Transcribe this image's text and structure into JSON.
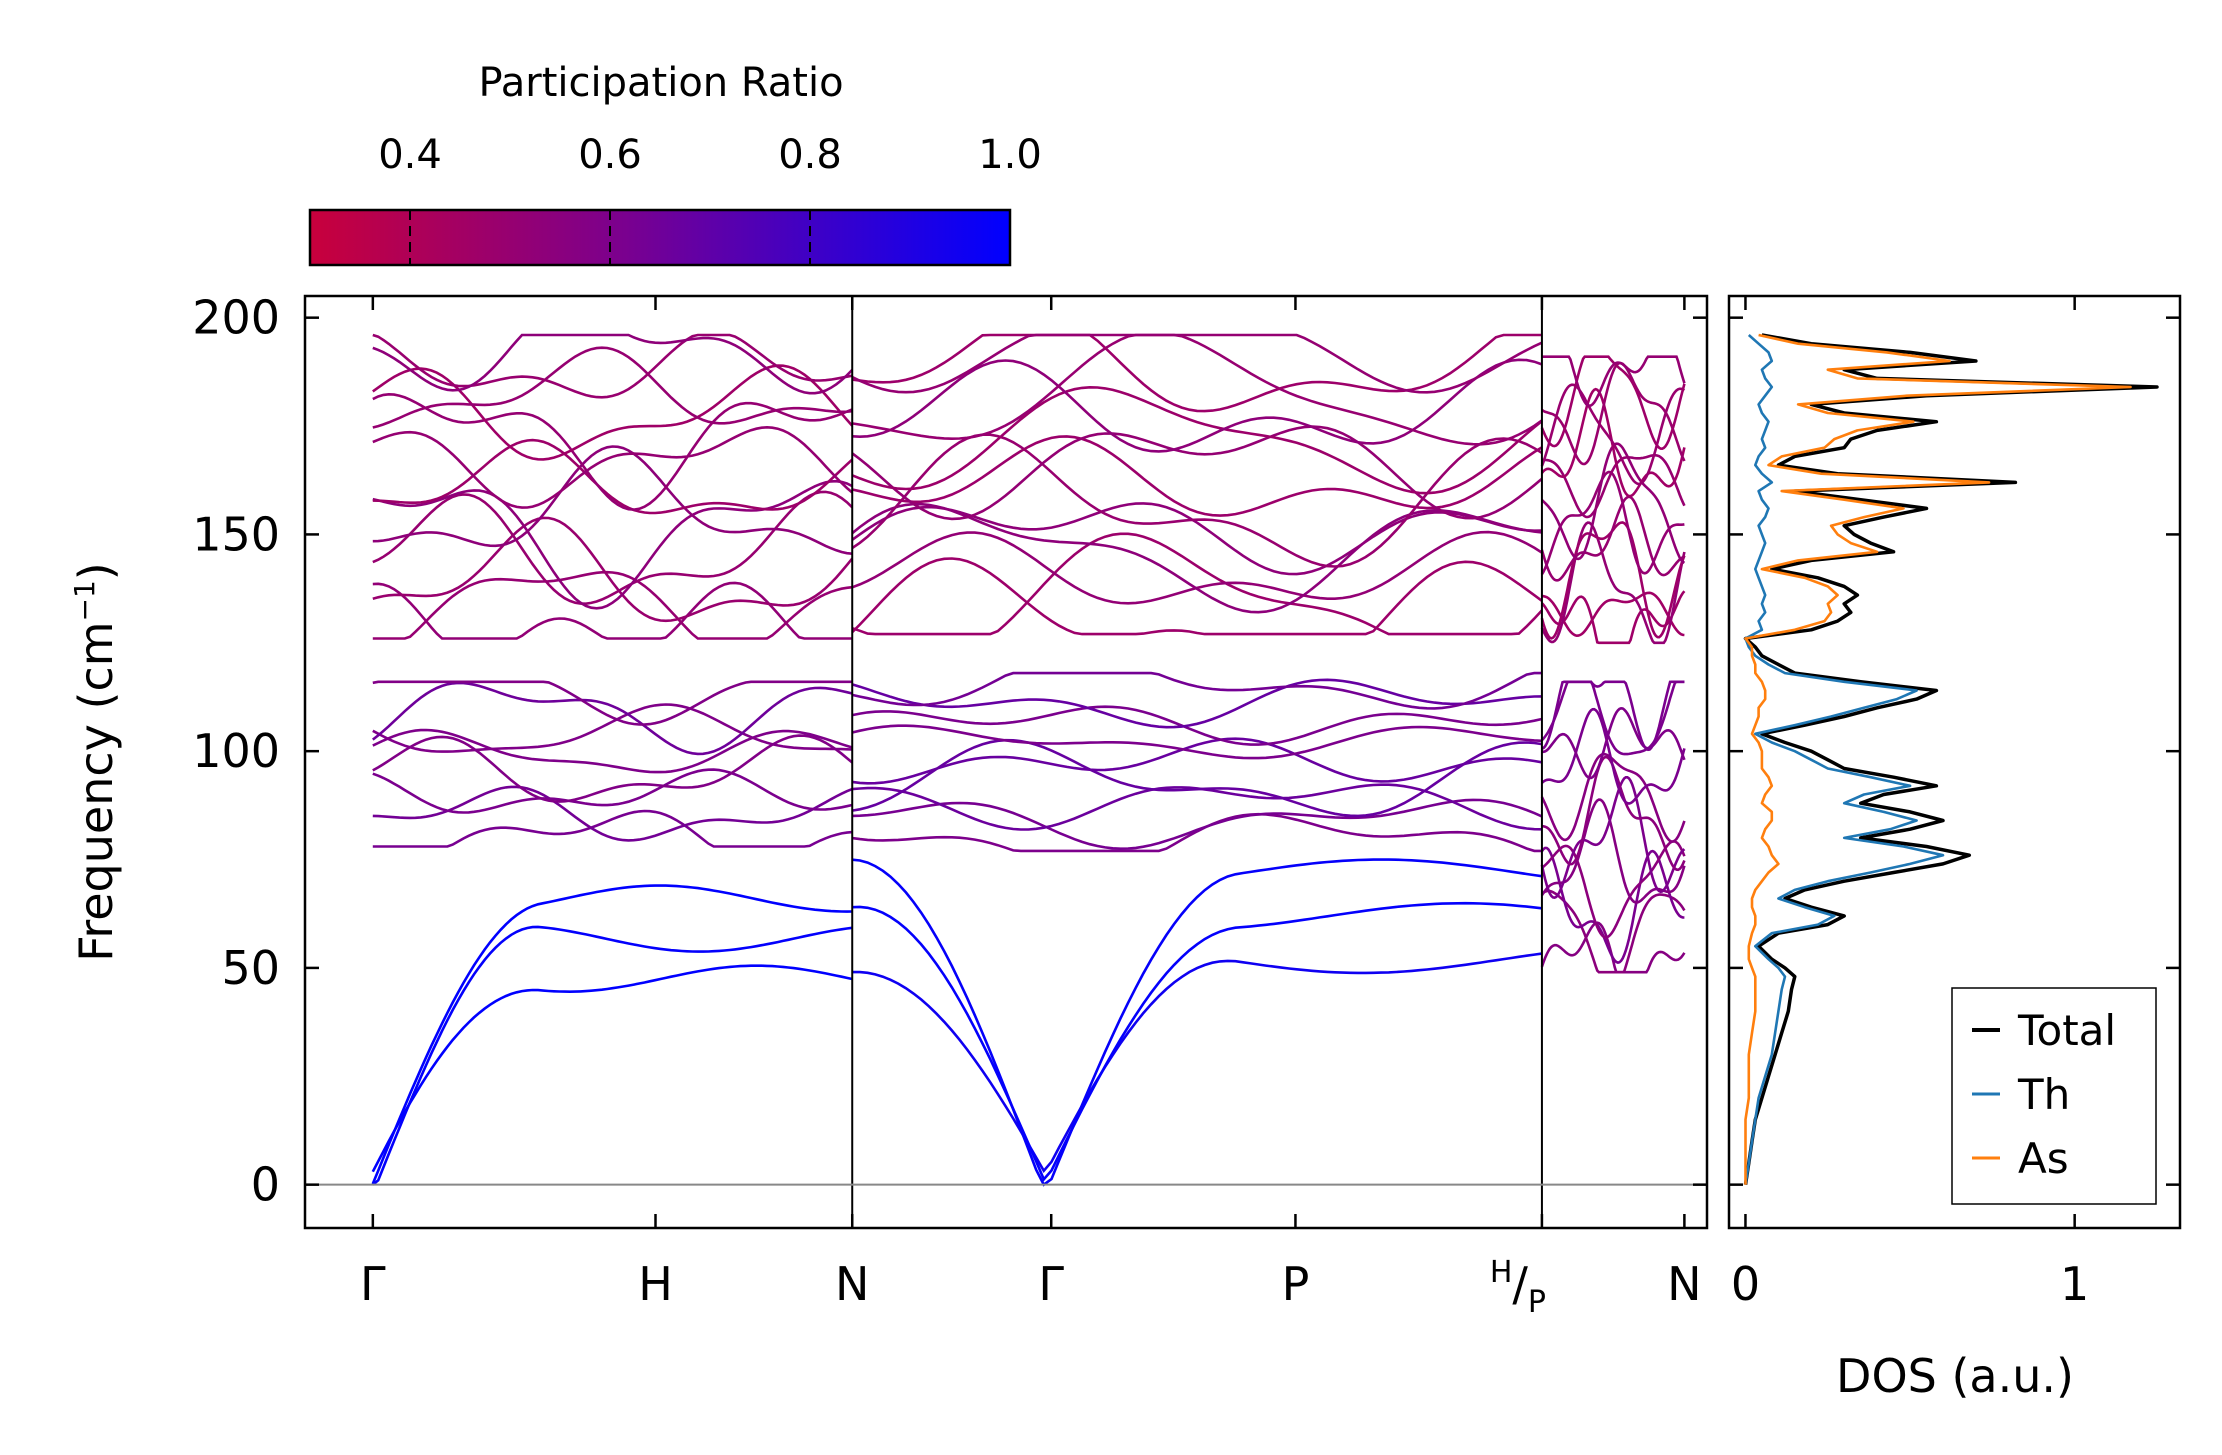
{
  "chart_data": [
    {
      "type": "line",
      "subtype": "phonon-band-structure",
      "ylabel": "Frequency (cm⁻¹)",
      "ylabel_parts": {
        "base": "Frequency (cm",
        "sup": "−1",
        "close": ")"
      },
      "ylim": [
        -10,
        205
      ],
      "yticks": [
        0,
        50,
        100,
        150,
        200
      ],
      "ytick_labels": [
        "0",
        "50",
        "100",
        "150",
        "200"
      ],
      "xlim": [
        -0.3,
        5.9
      ],
      "high_symmetry_points": [
        {
          "x": 0.0,
          "label": "Γ"
        },
        {
          "x": 1.25,
          "label": "H"
        },
        {
          "x": 2.12,
          "label": "N"
        },
        {
          "x": 3.0,
          "label": "Γ"
        },
        {
          "x": 4.08,
          "label": "P"
        },
        {
          "x": 5.17,
          "label": "H/P",
          "upper": "H",
          "lower": "P"
        },
        {
          "x": 5.8,
          "label": "N"
        }
      ],
      "segments": [
        [
          0.0,
          2.12
        ],
        [
          2.12,
          5.17
        ],
        [
          5.17,
          5.8
        ]
      ],
      "color_scale": {
        "name": "Participation Ratio",
        "min": 0.3,
        "max": 1.0,
        "low_color": "#c8003c",
        "mid_color": "#7a008f",
        "high_color": "#0000ff"
      },
      "band_groups": [
        {
          "segment": 0,
          "range": [
            126,
            196
          ],
          "count": 13,
          "pr": 0.5
        },
        {
          "segment": 0,
          "range": [
            78,
            116
          ],
          "count": 8,
          "pr": 0.62
        },
        {
          "segment": 0,
          "range": [
            0,
            66
          ],
          "count": 3,
          "pr": 1.0
        },
        {
          "segment": 1,
          "range": [
            127,
            196
          ],
          "count": 13,
          "pr": 0.5
        },
        {
          "segment": 1,
          "range": [
            77,
            118
          ],
          "count": 9,
          "pr": 0.64
        },
        {
          "segment": 1,
          "range": [
            0,
            72
          ],
          "count": 3,
          "pr": 0.98
        },
        {
          "segment": 2,
          "range": [
            125,
            191
          ],
          "count": 13,
          "pr": 0.48
        },
        {
          "segment": 2,
          "range": [
            49,
            116
          ],
          "count": 12,
          "pr": 0.58
        }
      ],
      "baseline": 0
    },
    {
      "type": "line",
      "subtype": "density-of-states",
      "xlabel": "DOS (a.u.)",
      "xlim": [
        -0.05,
        1.32
      ],
      "xticks": [
        0,
        1
      ],
      "xtick_labels": [
        "0",
        "1"
      ],
      "ylim": [
        -10,
        205
      ],
      "legend_position": "bottom-right",
      "frequency": [
        0,
        5,
        10,
        15,
        20,
        25,
        30,
        35,
        40,
        45,
        48,
        50,
        52,
        55,
        58,
        60,
        62,
        64,
        66,
        68,
        70,
        72,
        74,
        76,
        78,
        80,
        82,
        84,
        86,
        88,
        90,
        92,
        94,
        96,
        98,
        100,
        102,
        104,
        106,
        108,
        110,
        112,
        114,
        116,
        118,
        120,
        122,
        124,
        126,
        128,
        130,
        132,
        134,
        136,
        138,
        140,
        142,
        144,
        146,
        148,
        150,
        152,
        154,
        156,
        158,
        160,
        162,
        164,
        166,
        168,
        170,
        172,
        174,
        176,
        178,
        180,
        182,
        184,
        186,
        188,
        190,
        192,
        194,
        196
      ],
      "series": [
        {
          "name": "Total",
          "color": "#000000",
          "values": [
            0.0,
            0.01,
            0.02,
            0.03,
            0.05,
            0.07,
            0.09,
            0.11,
            0.13,
            0.14,
            0.15,
            0.12,
            0.08,
            0.04,
            0.1,
            0.25,
            0.3,
            0.2,
            0.12,
            0.18,
            0.3,
            0.45,
            0.6,
            0.68,
            0.55,
            0.35,
            0.5,
            0.6,
            0.5,
            0.35,
            0.42,
            0.58,
            0.45,
            0.3,
            0.25,
            0.2,
            0.12,
            0.05,
            0.18,
            0.3,
            0.4,
            0.52,
            0.58,
            0.35,
            0.15,
            0.1,
            0.05,
            0.03,
            0.0,
            0.2,
            0.28,
            0.32,
            0.3,
            0.34,
            0.3,
            0.22,
            0.08,
            0.2,
            0.45,
            0.38,
            0.33,
            0.3,
            0.42,
            0.55,
            0.35,
            0.15,
            0.82,
            0.28,
            0.1,
            0.15,
            0.3,
            0.32,
            0.4,
            0.58,
            0.3,
            0.2,
            0.55,
            1.25,
            0.4,
            0.3,
            0.7,
            0.5,
            0.2,
            0.05
          ]
        },
        {
          "name": "Th",
          "color": "#1f77b4",
          "values": [
            0.0,
            0.01,
            0.02,
            0.03,
            0.04,
            0.06,
            0.08,
            0.09,
            0.1,
            0.11,
            0.12,
            0.1,
            0.07,
            0.03,
            0.08,
            0.22,
            0.27,
            0.18,
            0.1,
            0.15,
            0.25,
            0.38,
            0.5,
            0.6,
            0.48,
            0.3,
            0.44,
            0.52,
            0.42,
            0.3,
            0.36,
            0.5,
            0.38,
            0.25,
            0.2,
            0.15,
            0.08,
            0.03,
            0.15,
            0.26,
            0.36,
            0.46,
            0.52,
            0.3,
            0.12,
            0.07,
            0.03,
            0.01,
            0.0,
            0.05,
            0.04,
            0.06,
            0.05,
            0.06,
            0.05,
            0.04,
            0.03,
            0.04,
            0.05,
            0.06,
            0.05,
            0.04,
            0.06,
            0.07,
            0.05,
            0.04,
            0.08,
            0.05,
            0.03,
            0.04,
            0.06,
            0.05,
            0.06,
            0.07,
            0.05,
            0.04,
            0.06,
            0.08,
            0.06,
            0.05,
            0.08,
            0.07,
            0.04,
            0.01
          ]
        },
        {
          "name": "As",
          "color": "#ff7f0e",
          "values": [
            0.0,
            0.0,
            0.0,
            0.0,
            0.01,
            0.01,
            0.01,
            0.02,
            0.03,
            0.03,
            0.03,
            0.02,
            0.01,
            0.01,
            0.02,
            0.03,
            0.03,
            0.02,
            0.02,
            0.03,
            0.05,
            0.07,
            0.1,
            0.08,
            0.07,
            0.05,
            0.06,
            0.08,
            0.08,
            0.05,
            0.06,
            0.08,
            0.07,
            0.05,
            0.05,
            0.05,
            0.04,
            0.02,
            0.03,
            0.04,
            0.04,
            0.06,
            0.06,
            0.05,
            0.03,
            0.03,
            0.02,
            0.02,
            0.0,
            0.15,
            0.24,
            0.26,
            0.25,
            0.28,
            0.25,
            0.18,
            0.05,
            0.16,
            0.4,
            0.32,
            0.28,
            0.26,
            0.36,
            0.48,
            0.3,
            0.11,
            0.74,
            0.23,
            0.07,
            0.11,
            0.24,
            0.27,
            0.34,
            0.51,
            0.25,
            0.16,
            0.49,
            1.17,
            0.34,
            0.25,
            0.62,
            0.43,
            0.16,
            0.04
          ]
        }
      ]
    }
  ]
}
